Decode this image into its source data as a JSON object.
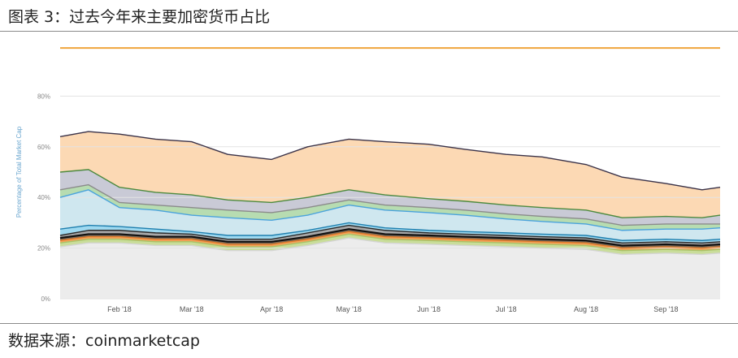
{
  "header": {
    "title": "图表 3：过去今年来主要加密货币占比"
  },
  "footer": {
    "source": "数据来源：coinmarketcap"
  },
  "chart_data": {
    "type": "area",
    "stacked": true,
    "ylabel": "Percentage of Total Market Cap",
    "ylim": [
      0,
      100
    ],
    "yticks": [
      "0%",
      "20%",
      "40%",
      "60%",
      "80%"
    ],
    "ytick_values": [
      0,
      20,
      40,
      60,
      80
    ],
    "grid": true,
    "legend": "none",
    "xlim": [
      "2018-01-09",
      "2018-09-22"
    ],
    "xtick_labels": [
      "Feb '18",
      "Mar '18",
      "Apr '18",
      "May '18",
      "Jun '18",
      "Jul '18",
      "Aug '18",
      "Sep '18"
    ],
    "xtick_dates": [
      "2018-02-01",
      "2018-03-01",
      "2018-04-01",
      "2018-05-01",
      "2018-06-01",
      "2018-07-01",
      "2018-08-01",
      "2018-09-01"
    ],
    "x": [
      "2018-01-09",
      "2018-01-20",
      "2018-02-01",
      "2018-02-15",
      "2018-03-01",
      "2018-03-15",
      "2018-04-01",
      "2018-04-15",
      "2018-05-01",
      "2018-05-15",
      "2018-06-01",
      "2018-06-15",
      "2018-07-01",
      "2018-07-15",
      "2018-08-01",
      "2018-08-15",
      "2018-09-01",
      "2018-09-15",
      "2018-09-22"
    ],
    "boundaries": [
      {
        "values": [
          20.5,
          22,
          22,
          21,
          21,
          19,
          19,
          21,
          24,
          22,
          21.5,
          21,
          20.5,
          20,
          19.5,
          17.5,
          18,
          17.5,
          18
        ],
        "fill": "#ececec",
        "line": "#d5d5d5"
      },
      {
        "values": [
          22,
          23.5,
          23.5,
          22.5,
          22.5,
          20.5,
          20.5,
          22.5,
          25.5,
          23.5,
          23,
          22.5,
          22,
          21.5,
          21,
          19,
          19.5,
          19,
          19.5
        ],
        "fill": "#c9dd9a",
        "line": "#a8c46a"
      },
      {
        "values": [
          23,
          24.5,
          24.5,
          23.5,
          23.5,
          21.5,
          21.5,
          23.5,
          26.5,
          24.5,
          24,
          23.5,
          23,
          22.5,
          22,
          20,
          20.5,
          20,
          20.5
        ],
        "fill": "#f2a35a",
        "line": "#e07a2a"
      },
      {
        "values": [
          24,
          25.5,
          25.5,
          24.5,
          24.5,
          22.5,
          22.5,
          24.5,
          27.5,
          25.5,
          25,
          24.5,
          24,
          23.5,
          23,
          21,
          21.5,
          21,
          21.5
        ],
        "fill": "#7a6a58",
        "line": "#111111"
      },
      {
        "values": [
          25,
          27,
          27,
          26,
          25.5,
          23.5,
          23.5,
          26,
          29,
          27,
          26,
          25.5,
          25,
          24.5,
          24,
          22,
          22.5,
          22,
          22.5
        ],
        "fill": "#a9a9a9",
        "line": "#2c2c2c"
      },
      {
        "values": [
          27.5,
          29,
          28.5,
          27.5,
          26.5,
          25,
          25,
          27,
          30,
          28,
          27,
          26.5,
          26,
          25.5,
          25,
          23,
          23.5,
          23,
          23.5
        ],
        "fill": "#9ed9f0",
        "line": "#1f7fae"
      },
      {
        "values": [
          40,
          43,
          36,
          35,
          33,
          32,
          31,
          33,
          37,
          35,
          34,
          33,
          31.5,
          30.5,
          29.5,
          27,
          27.5,
          27.5,
          28
        ],
        "fill": "#cfe7ef",
        "line": "#4aa3dc"
      },
      {
        "values": [
          43,
          45,
          38,
          37,
          36,
          35,
          34,
          36,
          39,
          37,
          36,
          35,
          33.5,
          32.5,
          31.5,
          29,
          29.5,
          29.5,
          29.5
        ],
        "fill": "#b7dcb1",
        "line": "#8b8b8b"
      },
      {
        "values": [
          50,
          51,
          44,
          42,
          41,
          39,
          38,
          40,
          43,
          41,
          39.5,
          38.5,
          37,
          36,
          35,
          32,
          32.5,
          32,
          33
        ],
        "fill": "#c9cad6",
        "line": "#4d8a3e"
      },
      {
        "values": [
          64,
          66,
          65,
          63,
          62,
          57,
          55,
          60,
          63,
          62,
          61,
          59,
          57,
          56,
          53,
          48,
          45.5,
          43,
          44
        ],
        "fill": "#fcd9b4",
        "line": "#3a3248"
      },
      {
        "values": [
          99,
          99,
          99,
          99,
          99,
          99,
          99,
          99,
          99,
          99,
          99,
          99,
          99,
          99,
          99,
          99,
          99,
          99,
          99
        ],
        "fill": "",
        "line": "#f0a43c"
      }
    ]
  }
}
